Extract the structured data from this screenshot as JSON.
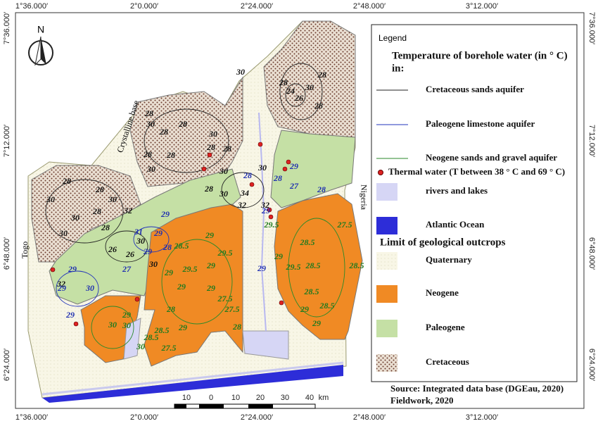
{
  "coords": {
    "lon": [
      "1°36.000′",
      "2°0.000′",
      "2°24.000′",
      "2°48.000′",
      "3°12.000′"
    ],
    "lat": [
      "7°36.000′",
      "7°12.000′",
      "6°48.000′",
      "6°24.000′"
    ]
  },
  "north": "N",
  "places": {
    "crystalline": "Crystalline base",
    "togo": "Togo",
    "nigeria": "Nigeria"
  },
  "legend": {
    "title": "Legend",
    "heading": [
      "Temperature of borehole water (in ° C)",
      "in:"
    ],
    "aquifers": [
      "Cretaceous sands aquifer",
      "Paleogene limestone aquifer",
      "Neogene  sands and gravel aquifer"
    ],
    "thermal": "Thermal water (T between 38 ° C and 69 ° C)",
    "water": [
      "rivers and lakes",
      "Atlantic Ocean"
    ],
    "geology_heading": "Limit of geological outcrops",
    "geology": [
      "Quaternary",
      "Neogene",
      "Paleogene",
      "Cretaceous"
    ]
  },
  "source": [
    "Source: Integrated data base (DGEau, 2020)",
    "Fieldwork, 2020"
  ],
  "scale": {
    "labels": [
      "10",
      "0",
      "10",
      "20",
      "30",
      "40"
    ],
    "unit": "km"
  },
  "contour_labels": {
    "cretaceous": [
      "30",
      "28",
      "28",
      "24",
      "26",
      "30",
      "28",
      "28",
      "30",
      "28",
      "30",
      "28",
      "28",
      "30",
      "28",
      "28",
      "28",
      "30",
      "28",
      "30",
      "34",
      "30",
      "32",
      "32",
      "28",
      "30",
      "28",
      "30",
      "30",
      "30",
      "28",
      "32",
      "28",
      "26",
      "26",
      "30",
      "30",
      "32"
    ],
    "paleogene": [
      "28",
      "28",
      "29",
      "27",
      "28",
      "29",
      "29",
      "29",
      "31",
      "28",
      "29",
      "29",
      "29",
      "30",
      "29",
      "27",
      "29"
    ],
    "neogene": [
      "29",
      "28.5",
      "29",
      "29.5",
      "29",
      "29.5",
      "29",
      "29",
      "27.5",
      "27.5",
      "28",
      "28",
      "29",
      "28.5",
      "27.5",
      "30",
      "28.5",
      "29",
      "30",
      "30",
      "29.5",
      "28.5",
      "29.5",
      "28.5",
      "27.5",
      "28.5",
      "28.5",
      "28.5",
      "29",
      "29",
      "29"
    ]
  }
}
